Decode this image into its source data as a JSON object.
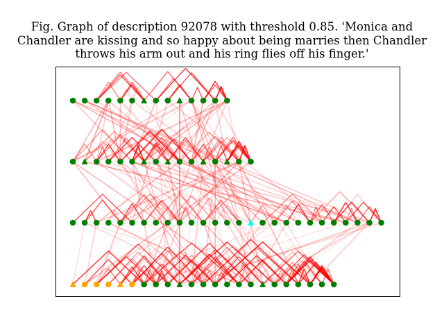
{
  "title_lines": [
    "Fig. Graph of description 92078 with threshold 0.85. 'Monica and",
    "Chandler are kissing and so happy about being marries then Chandler",
    "throws his arm out and his ring flies off his finger.'"
  ],
  "colors": {
    "node_default": "#007f00",
    "node_highlight_cyan": "#00ffff",
    "node_highlight_orange": "#ffa500",
    "edge": "#ff0000",
    "frame": "#000000"
  },
  "graph": {
    "layers": [
      {
        "count": 14,
        "triangles": [
          6,
          9
        ],
        "cyan": [],
        "orange": []
      },
      {
        "count": 16,
        "triangles": [
          1,
          6,
          8,
          11,
          13
        ],
        "cyan": [],
        "orange": []
      },
      {
        "count": 27,
        "triangles": [
          15
        ],
        "cyan": [
          15
        ],
        "orange": []
      },
      {
        "count": 23,
        "triangles": [
          0,
          4,
          9,
          16
        ],
        "cyan": [],
        "orange": [
          0,
          1,
          2,
          3,
          4,
          5
        ]
      }
    ]
  }
}
